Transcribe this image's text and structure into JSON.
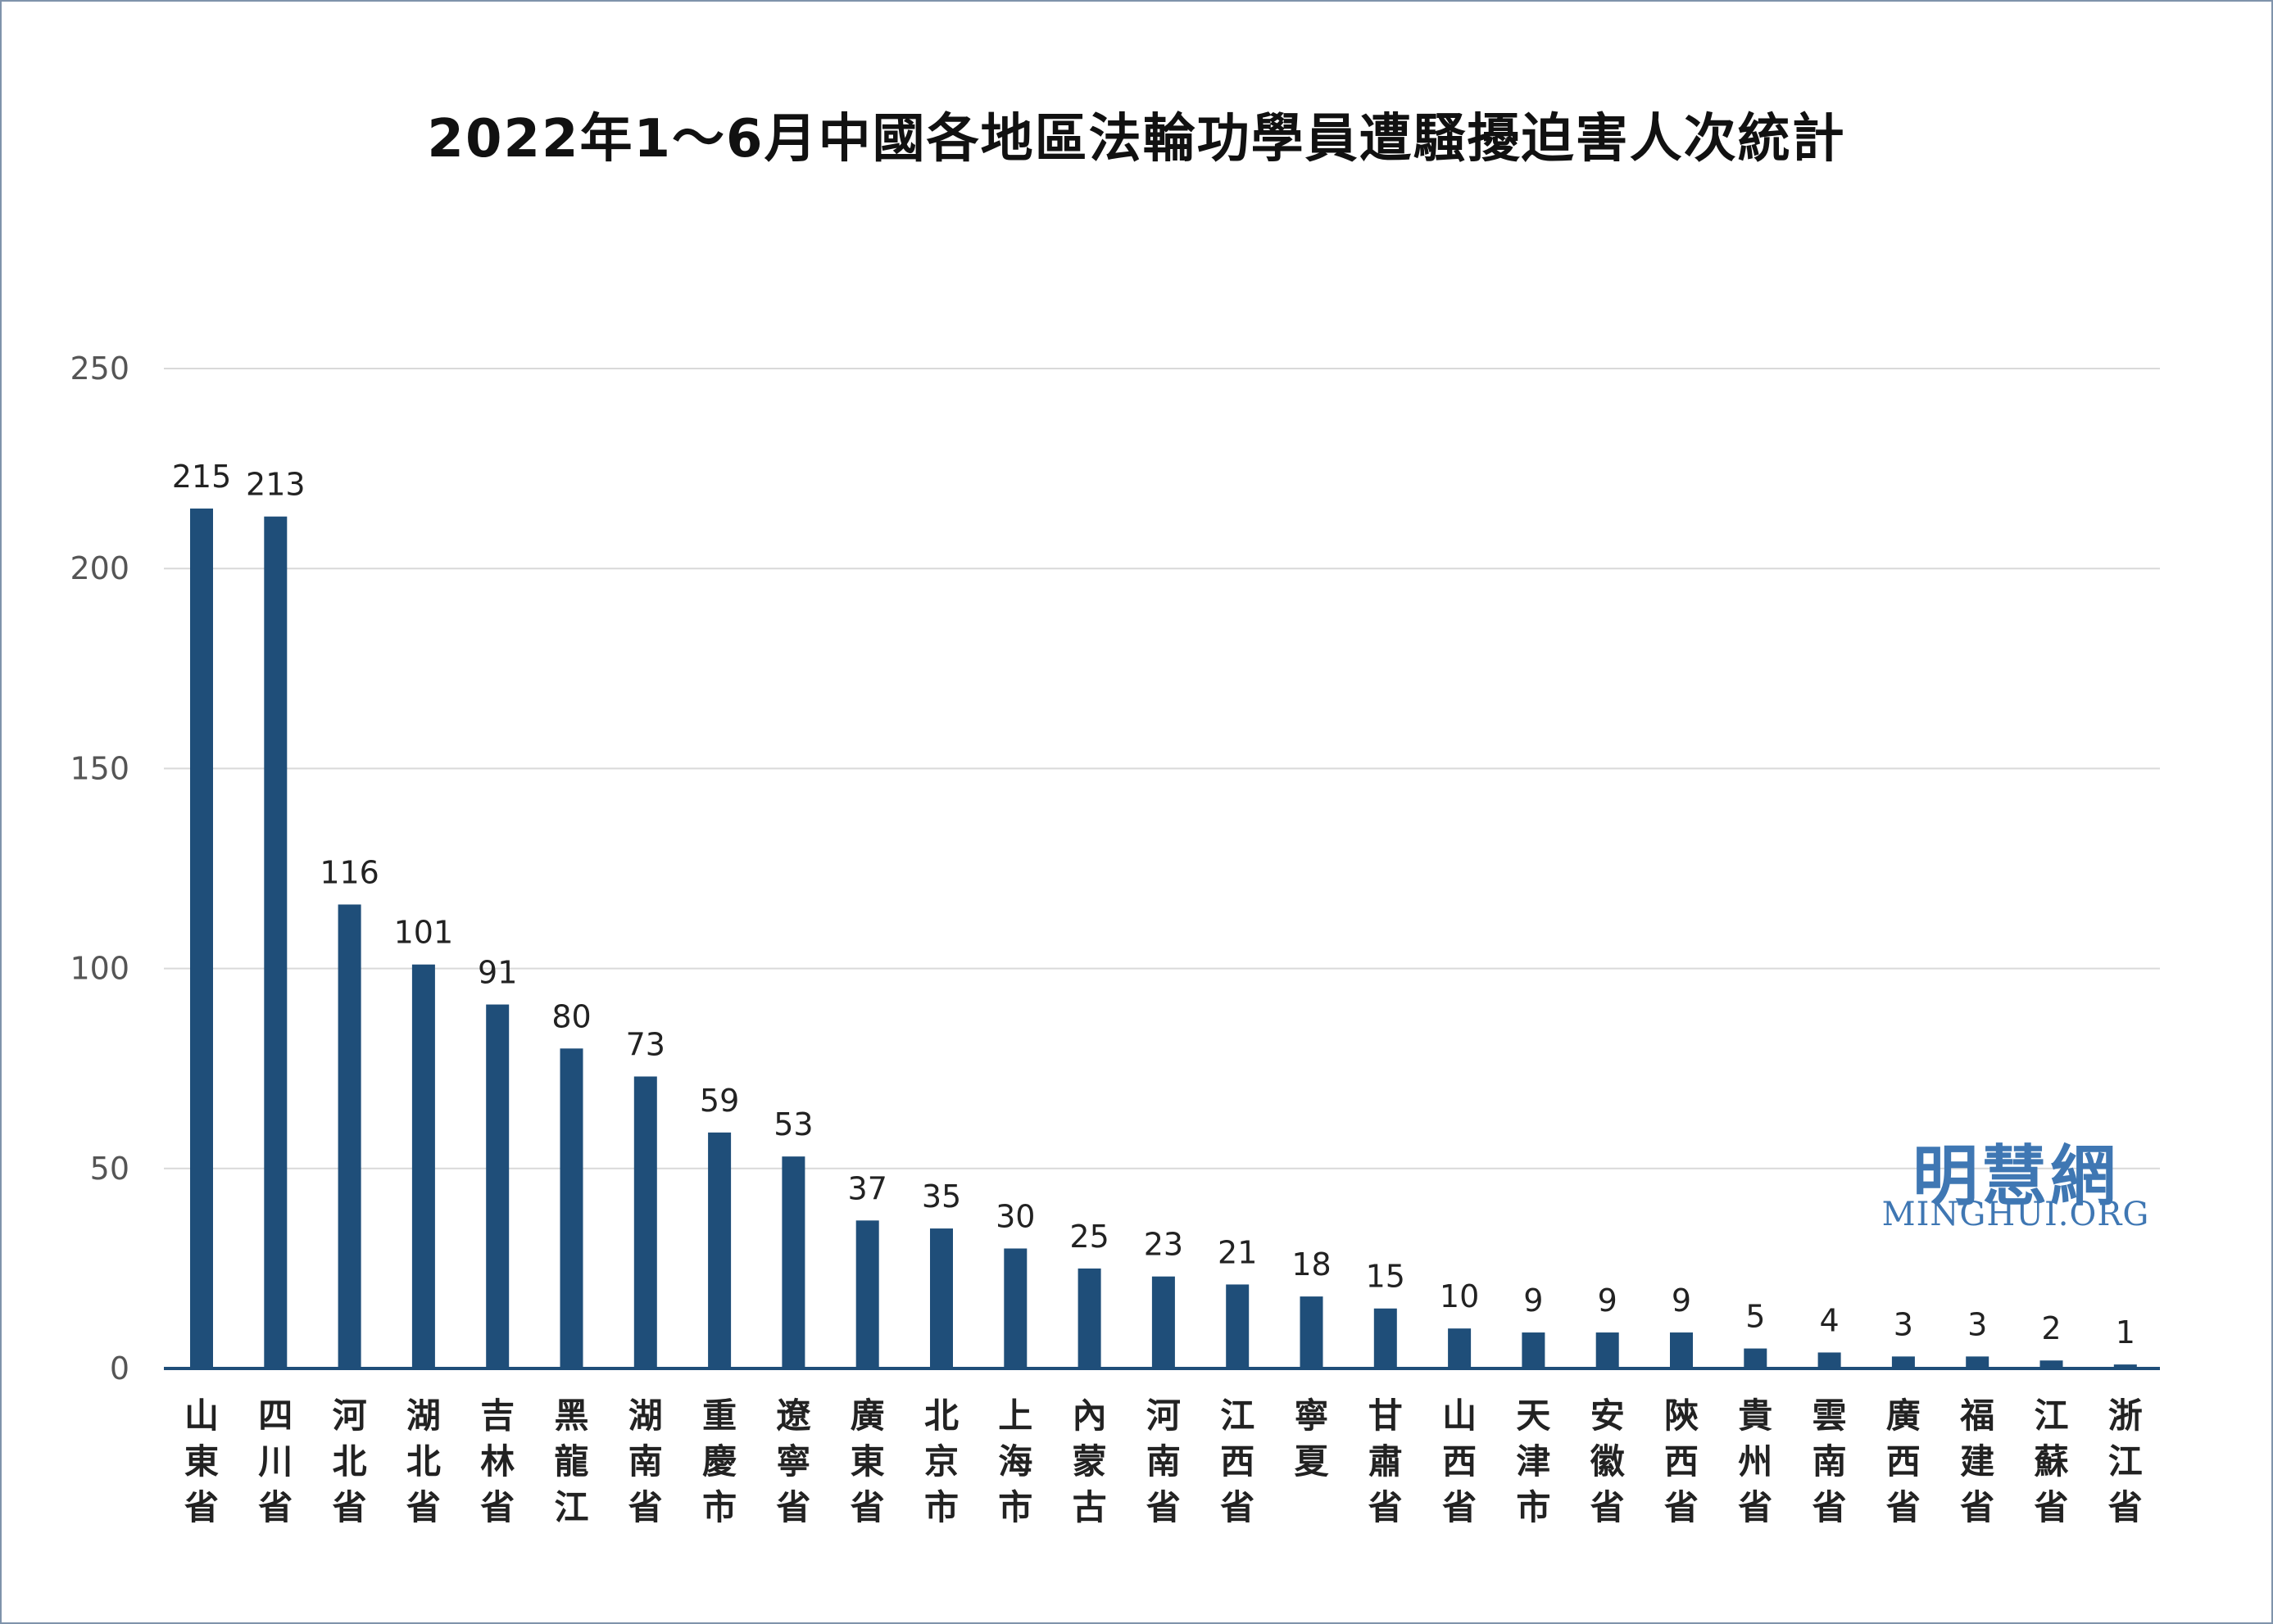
{
  "chart_data": {
    "type": "bar",
    "title": "2022年1～6月中國各地區法輪功學員遭騷擾迫害人次統計",
    "categories": [
      "山東省",
      "四川省",
      "河北省",
      "湖北省",
      "吉林省",
      "黑龍江",
      "湖南省",
      "重慶市",
      "遼寧省",
      "廣東省",
      "北京市",
      "上海市",
      "內蒙古",
      "河南省",
      "江西省",
      "寧夏",
      "甘肅省",
      "山西省",
      "天津市",
      "安徽省",
      "陝西省",
      "貴州省",
      "雲南省",
      "廣西省",
      "福建省",
      "江蘇省",
      "浙江省"
    ],
    "values": [
      215,
      213,
      116,
      101,
      91,
      80,
      73,
      59,
      53,
      37,
      35,
      30,
      25,
      23,
      21,
      18,
      15,
      10,
      9,
      9,
      9,
      5,
      4,
      3,
      3,
      2,
      1
    ],
    "ylim": [
      0,
      250
    ],
    "yticks": [
      0,
      50,
      100,
      150,
      200,
      250
    ],
    "grid": true,
    "bar_color": "#1f4e79",
    "grid_color": "#d9d9d9",
    "axis_color": "#1f4e79"
  },
  "brand": {
    "name_cn": "明慧網",
    "name_en": "MINGHUI.ORG",
    "color": "#3f77b3"
  }
}
